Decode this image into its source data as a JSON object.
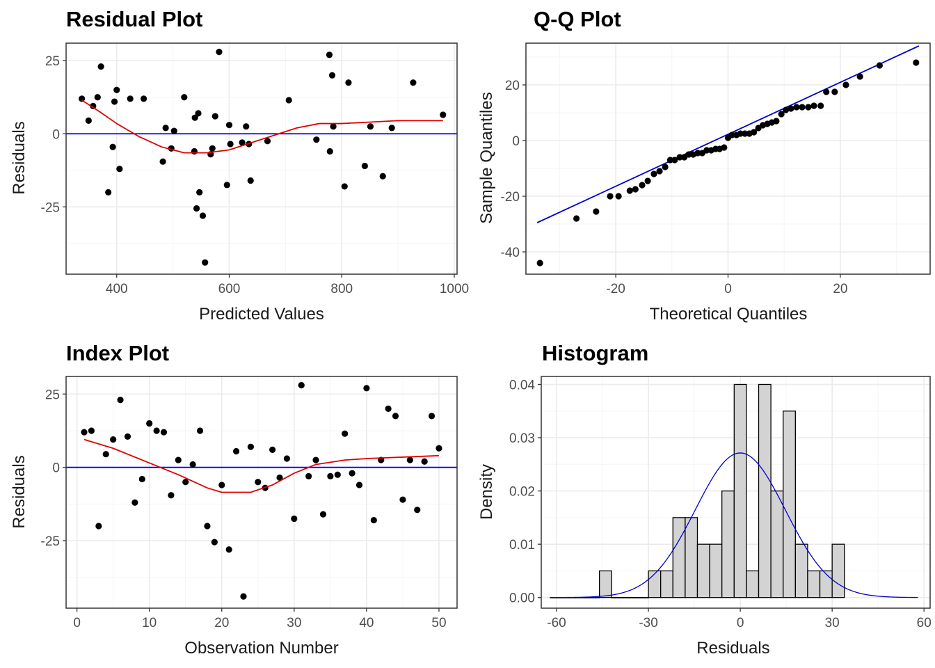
{
  "chart_data": [
    {
      "id": "residual",
      "type": "scatter",
      "title": "Residual Plot",
      "xlabel": "Predicted Values",
      "ylabel": "Residuals",
      "xlim": [
        310,
        1005
      ],
      "ylim": [
        -48,
        31
      ],
      "xticks": [
        400,
        600,
        800,
        1000
      ],
      "yticks": [
        -25,
        0,
        25
      ],
      "points": [
        [
          338,
          12
        ],
        [
          350,
          4.5
        ],
        [
          358,
          9.5
        ],
        [
          366,
          12.5
        ],
        [
          372,
          23
        ],
        [
          385,
          -20
        ],
        [
          393,
          -4.5
        ],
        [
          396,
          11
        ],
        [
          400,
          15
        ],
        [
          405,
          -12
        ],
        [
          424,
          12
        ],
        [
          448,
          12
        ],
        [
          482,
          -9.5
        ],
        [
          487,
          2
        ],
        [
          497,
          -5
        ],
        [
          502,
          1
        ],
        [
          520,
          12.5
        ],
        [
          538,
          -6
        ],
        [
          539,
          5.5
        ],
        [
          542,
          -25.5
        ],
        [
          545,
          7
        ],
        [
          547,
          -20
        ],
        [
          553,
          -28
        ],
        [
          557,
          -44
        ],
        [
          567,
          -7
        ],
        [
          570,
          -5
        ],
        [
          575,
          6
        ],
        [
          582,
          28
        ],
        [
          596,
          -17.5
        ],
        [
          600,
          3
        ],
        [
          602,
          -3.5
        ],
        [
          623,
          -3
        ],
        [
          630,
          2.5
        ],
        [
          635,
          -3.5
        ],
        [
          638,
          -16
        ],
        [
          668,
          -2.5
        ],
        [
          706,
          11.5
        ],
        [
          755,
          -2
        ],
        [
          778,
          27
        ],
        [
          779,
          -6
        ],
        [
          783,
          20
        ],
        [
          785,
          2.5
        ],
        [
          805,
          -18
        ],
        [
          812,
          17.5
        ],
        [
          841,
          -11
        ],
        [
          851,
          2.5
        ],
        [
          873,
          -14.5
        ],
        [
          889,
          2
        ],
        [
          927,
          17.5
        ],
        [
          980,
          6.5
        ]
      ],
      "hline": 0,
      "smooth": [
        [
          338,
          11.5
        ],
        [
          370,
          7.5
        ],
        [
          400,
          3.5
        ],
        [
          440,
          -1
        ],
        [
          480,
          -4.5
        ],
        [
          520,
          -6.5
        ],
        [
          560,
          -6.5
        ],
        [
          600,
          -5.5
        ],
        [
          640,
          -3
        ],
        [
          680,
          -0.5
        ],
        [
          720,
          2
        ],
        [
          760,
          3.5
        ],
        [
          800,
          3.5
        ],
        [
          850,
          4
        ],
        [
          900,
          4.5
        ],
        [
          980,
          4.5
        ]
      ]
    },
    {
      "id": "qq",
      "type": "scatter",
      "title": "Q-Q Plot",
      "xlabel": "Theoretical Quantiles",
      "ylabel": "Sample Quantiles",
      "xlim": [
        -36,
        36
      ],
      "ylim": [
        -48,
        35
      ],
      "xticks": [
        -20,
        0,
        20
      ],
      "yticks": [
        -40,
        -20,
        0,
        20
      ],
      "points": [
        [
          -33.5,
          -44
        ],
        [
          -27,
          -28
        ],
        [
          -23.5,
          -25.5
        ],
        [
          -21,
          -20
        ],
        [
          -19.5,
          -20
        ],
        [
          -17.5,
          -18
        ],
        [
          -16.5,
          -17.5
        ],
        [
          -15.3,
          -16
        ],
        [
          -14.3,
          -14.5
        ],
        [
          -13.2,
          -12
        ],
        [
          -12.2,
          -11
        ],
        [
          -11.2,
          -9.5
        ],
        [
          -10.3,
          -7
        ],
        [
          -9.5,
          -7
        ],
        [
          -8.6,
          -6
        ],
        [
          -7.8,
          -6
        ],
        [
          -7,
          -5
        ],
        [
          -6.2,
          -5
        ],
        [
          -5.4,
          -4.5
        ],
        [
          -4.6,
          -4.5
        ],
        [
          -3.8,
          -3.5
        ],
        [
          -3,
          -3.5
        ],
        [
          -2.2,
          -3
        ],
        [
          -1.5,
          -3
        ],
        [
          -0.7,
          -2.5
        ],
        [
          0,
          1
        ],
        [
          0.7,
          2
        ],
        [
          1.5,
          2
        ],
        [
          2.2,
          2.5
        ],
        [
          3,
          2.5
        ],
        [
          3.8,
          2.5
        ],
        [
          4.6,
          3
        ],
        [
          5.4,
          4.5
        ],
        [
          6.2,
          5.5
        ],
        [
          7,
          6
        ],
        [
          7.8,
          6.5
        ],
        [
          8.6,
          7
        ],
        [
          9.5,
          9.5
        ],
        [
          10.3,
          11
        ],
        [
          11.2,
          11.5
        ],
        [
          12.2,
          12
        ],
        [
          13.2,
          12
        ],
        [
          14.3,
          12
        ],
        [
          15.3,
          12.5
        ],
        [
          16.5,
          12.5
        ],
        [
          17.5,
          17.5
        ],
        [
          19,
          17.5
        ],
        [
          21,
          20
        ],
        [
          23.5,
          23
        ],
        [
          27,
          27
        ],
        [
          33.5,
          28
        ]
      ],
      "qqline": [
        [
          -34,
          -29.5
        ],
        [
          34,
          34
        ]
      ]
    },
    {
      "id": "index",
      "type": "scatter",
      "title": "Index Plot",
      "xlabel": "Observation Number",
      "ylabel": "Residuals",
      "xlim": [
        -1.5,
        52.5
      ],
      "ylim": [
        -48,
        31
      ],
      "xticks": [
        0,
        10,
        20,
        30,
        40,
        50
      ],
      "yticks": [
        -25,
        0,
        25
      ],
      "points": [
        [
          1,
          12
        ],
        [
          2,
          12.5
        ],
        [
          3,
          -20
        ],
        [
          4,
          4.5
        ],
        [
          5,
          9.5
        ],
        [
          6,
          23
        ],
        [
          7,
          10.5
        ],
        [
          8,
          -12
        ],
        [
          9,
          -4
        ],
        [
          10,
          15
        ],
        [
          11,
          12.5
        ],
        [
          12,
          12
        ],
        [
          13,
          -9.5
        ],
        [
          14,
          2.5
        ],
        [
          15,
          -5
        ],
        [
          16,
          1
        ],
        [
          17,
          12.5
        ],
        [
          18,
          -20
        ],
        [
          19,
          -25.5
        ],
        [
          20,
          -6
        ],
        [
          21,
          -28
        ],
        [
          22,
          5.5
        ],
        [
          23,
          -44
        ],
        [
          24,
          7
        ],
        [
          25,
          -5
        ],
        [
          26,
          -7
        ],
        [
          27,
          6
        ],
        [
          28,
          -3.5
        ],
        [
          29,
          3
        ],
        [
          30,
          -17.5
        ],
        [
          31,
          28
        ],
        [
          32,
          -3
        ],
        [
          33,
          2.5
        ],
        [
          34,
          -16
        ],
        [
          35,
          -3
        ],
        [
          36,
          -2.5
        ],
        [
          37,
          11.5
        ],
        [
          38,
          -2
        ],
        [
          39,
          -6
        ],
        [
          40,
          27
        ],
        [
          41,
          -18
        ],
        [
          42,
          2.5
        ],
        [
          43,
          20
        ],
        [
          44,
          17.5
        ],
        [
          45,
          -11
        ],
        [
          46,
          2.5
        ],
        [
          47,
          -14.5
        ],
        [
          48,
          2
        ],
        [
          49,
          17.5
        ],
        [
          50,
          6.5
        ]
      ],
      "hline": 0,
      "smooth": [
        [
          1,
          9.5
        ],
        [
          5,
          6.5
        ],
        [
          10,
          1.5
        ],
        [
          14,
          -2.5
        ],
        [
          18,
          -7
        ],
        [
          20,
          -8.5
        ],
        [
          24,
          -8.5
        ],
        [
          27,
          -6
        ],
        [
          30,
          -2
        ],
        [
          33,
          1
        ],
        [
          37,
          2.5
        ],
        [
          40,
          3
        ],
        [
          45,
          3.5
        ],
        [
          50,
          4
        ]
      ]
    },
    {
      "id": "histogram",
      "type": "bar",
      "title": "Histogram",
      "xlabel": "Residuals",
      "ylabel": "Density",
      "xlim": [
        -65,
        62
      ],
      "ylim": [
        -0.002,
        0.0415
      ],
      "xticks": [
        -60,
        -30,
        0,
        30,
        60
      ],
      "yticks": [
        0,
        0.01,
        0.02,
        0.03,
        0.04
      ],
      "ytick_labels": [
        "0.00",
        "0.01",
        "0.02",
        "0.03",
        "0.04"
      ],
      "bin_width": 4,
      "bins": [
        [
          -62,
          0
        ],
        [
          -58,
          0
        ],
        [
          -54,
          0
        ],
        [
          -50,
          0
        ],
        [
          -46,
          0.005
        ],
        [
          -42,
          0
        ],
        [
          -38,
          0
        ],
        [
          -34,
          0
        ],
        [
          -30,
          0.005
        ],
        [
          -26,
          0.005
        ],
        [
          -22,
          0.015
        ],
        [
          -18,
          0.015
        ],
        [
          -14,
          0.01
        ],
        [
          -10,
          0.01
        ],
        [
          -6,
          0.02
        ],
        [
          -2,
          0.04
        ],
        [
          2,
          0.005
        ],
        [
          6,
          0.04
        ],
        [
          10,
          0.02
        ],
        [
          14,
          0.035
        ],
        [
          18,
          0.01
        ],
        [
          22,
          0.005
        ],
        [
          26,
          0.005
        ],
        [
          30,
          0.01
        ]
      ],
      "density_mean": 0,
      "density_sd": 14.7,
      "density_range": [
        -62,
        58
      ]
    }
  ],
  "colors": {
    "points": "#000000",
    "hline": "#0000ff",
    "smooth": "#e00000",
    "qqline": "#0000cc",
    "hist_fill": "#d3d3d3",
    "hist_stroke": "#000000",
    "density": "#0000cc",
    "grid_major": "#ebebeb",
    "grid_minor": "#f5f5f5",
    "panel_border": "#333333"
  }
}
